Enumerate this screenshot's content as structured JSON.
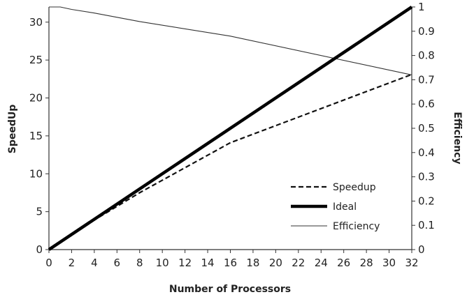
{
  "chart_data": {
    "type": "line",
    "xlabel": "Number of Processors",
    "ylabel": "SpeedUp",
    "y2label": "Efficiency",
    "x_ticks": [
      0,
      2,
      4,
      6,
      8,
      10,
      12,
      14,
      16,
      18,
      20,
      22,
      24,
      26,
      28,
      30,
      32
    ],
    "y_ticks": [
      0,
      5,
      10,
      15,
      20,
      25,
      30
    ],
    "y2_ticks": [
      "0",
      "0.1",
      "0.2",
      "0.3",
      "0.4",
      "0.5",
      "0.6",
      "0.7",
      "0.8",
      "0.9",
      "1"
    ],
    "xlim": [
      0,
      32
    ],
    "ylim": [
      0,
      32
    ],
    "y2lim": [
      0,
      1
    ],
    "grid": false,
    "legend": "bottom-right",
    "series": [
      {
        "name": "Speedup",
        "axis": "left",
        "style": "dashed",
        "x": [
          1,
          2,
          4,
          8,
          16,
          32
        ],
        "y": [
          1,
          1.98,
          3.9,
          7.5,
          14.1,
          23.1
        ]
      },
      {
        "name": "Ideal",
        "axis": "left",
        "style": "thick",
        "x": [
          0,
          32
        ],
        "y": [
          0,
          32
        ]
      },
      {
        "name": "Efficiency",
        "axis": "right",
        "style": "thin",
        "x": [
          0,
          1,
          2,
          4,
          8,
          16,
          32
        ],
        "y": [
          1.0,
          1.0,
          0.99,
          0.975,
          0.94,
          0.88,
          0.72
        ]
      }
    ]
  }
}
